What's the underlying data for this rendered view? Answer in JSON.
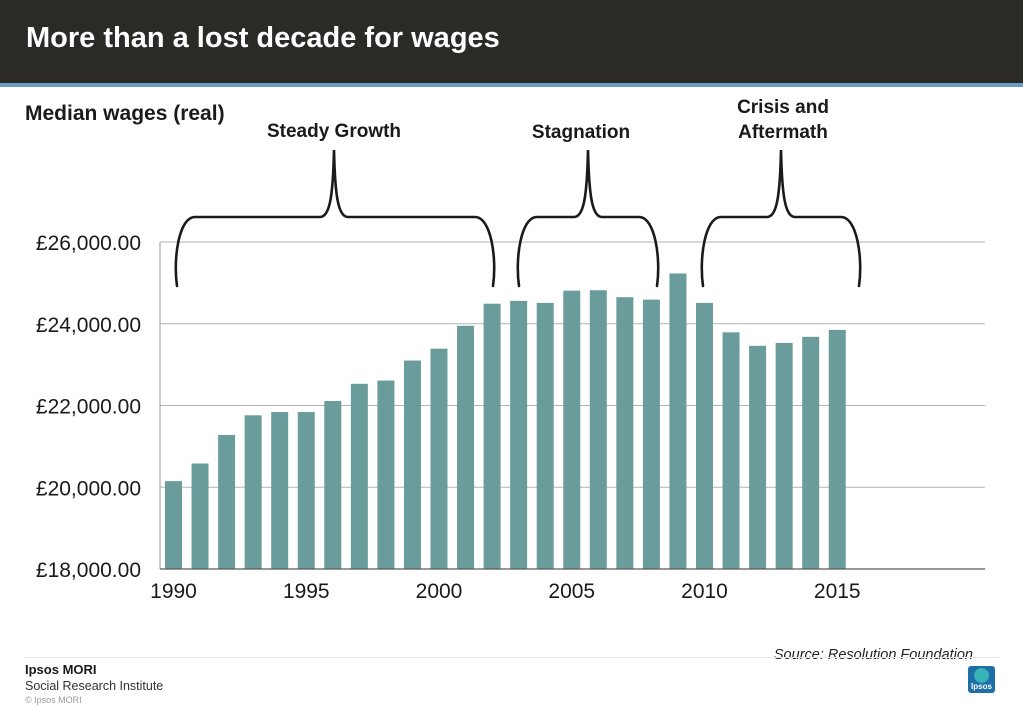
{
  "header": {
    "title": "More than a lost decade for wages"
  },
  "subtitle": "Median wages (real)",
  "phases": [
    {
      "label": "Steady Growth"
    },
    {
      "label": "Stagnation"
    },
    {
      "label": "Crisis and Aftermath"
    }
  ],
  "source": "Source: Resolution Foundation",
  "brand": {
    "name": "Ipsos MORI",
    "unit": "Social Research Institute",
    "copyright": "© Ipsos MORI",
    "logo_text": "Ipsos"
  },
  "colors": {
    "header_bg": "#2b2a27",
    "accent": "#6a9ec6",
    "bar": "#6b9c9c"
  },
  "chart_data": {
    "type": "bar",
    "x": [
      1990,
      1991,
      1992,
      1993,
      1994,
      1995,
      1996,
      1997,
      1998,
      1999,
      2000,
      2001,
      2002,
      2003,
      2004,
      2005,
      2006,
      2007,
      2008,
      2009,
      2010,
      2011,
      2012,
      2013,
      2014,
      2015
    ],
    "values": [
      20150,
      20580,
      21280,
      21760,
      21840,
      21840,
      22110,
      22530,
      22610,
      23100,
      23390,
      23950,
      24490,
      24560,
      24510,
      24810,
      24820,
      24650,
      24590,
      25230,
      24510,
      23790,
      23460,
      23530,
      23680,
      23850
    ],
    "ylim": [
      18000,
      26000
    ],
    "yticks": [
      18000,
      20000,
      22000,
      24000,
      26000
    ],
    "ytick_labels": [
      "£18,000.00",
      "£20,000.00",
      "£22,000.00",
      "£24,000.00",
      "£26,000.00"
    ],
    "xticks": [
      1990,
      1995,
      2000,
      2005,
      2010,
      2015
    ],
    "xtick_labels": [
      "1990",
      "1995",
      "2000",
      "2005",
      "2010",
      "2015"
    ],
    "grid": true,
    "legend": "none"
  }
}
